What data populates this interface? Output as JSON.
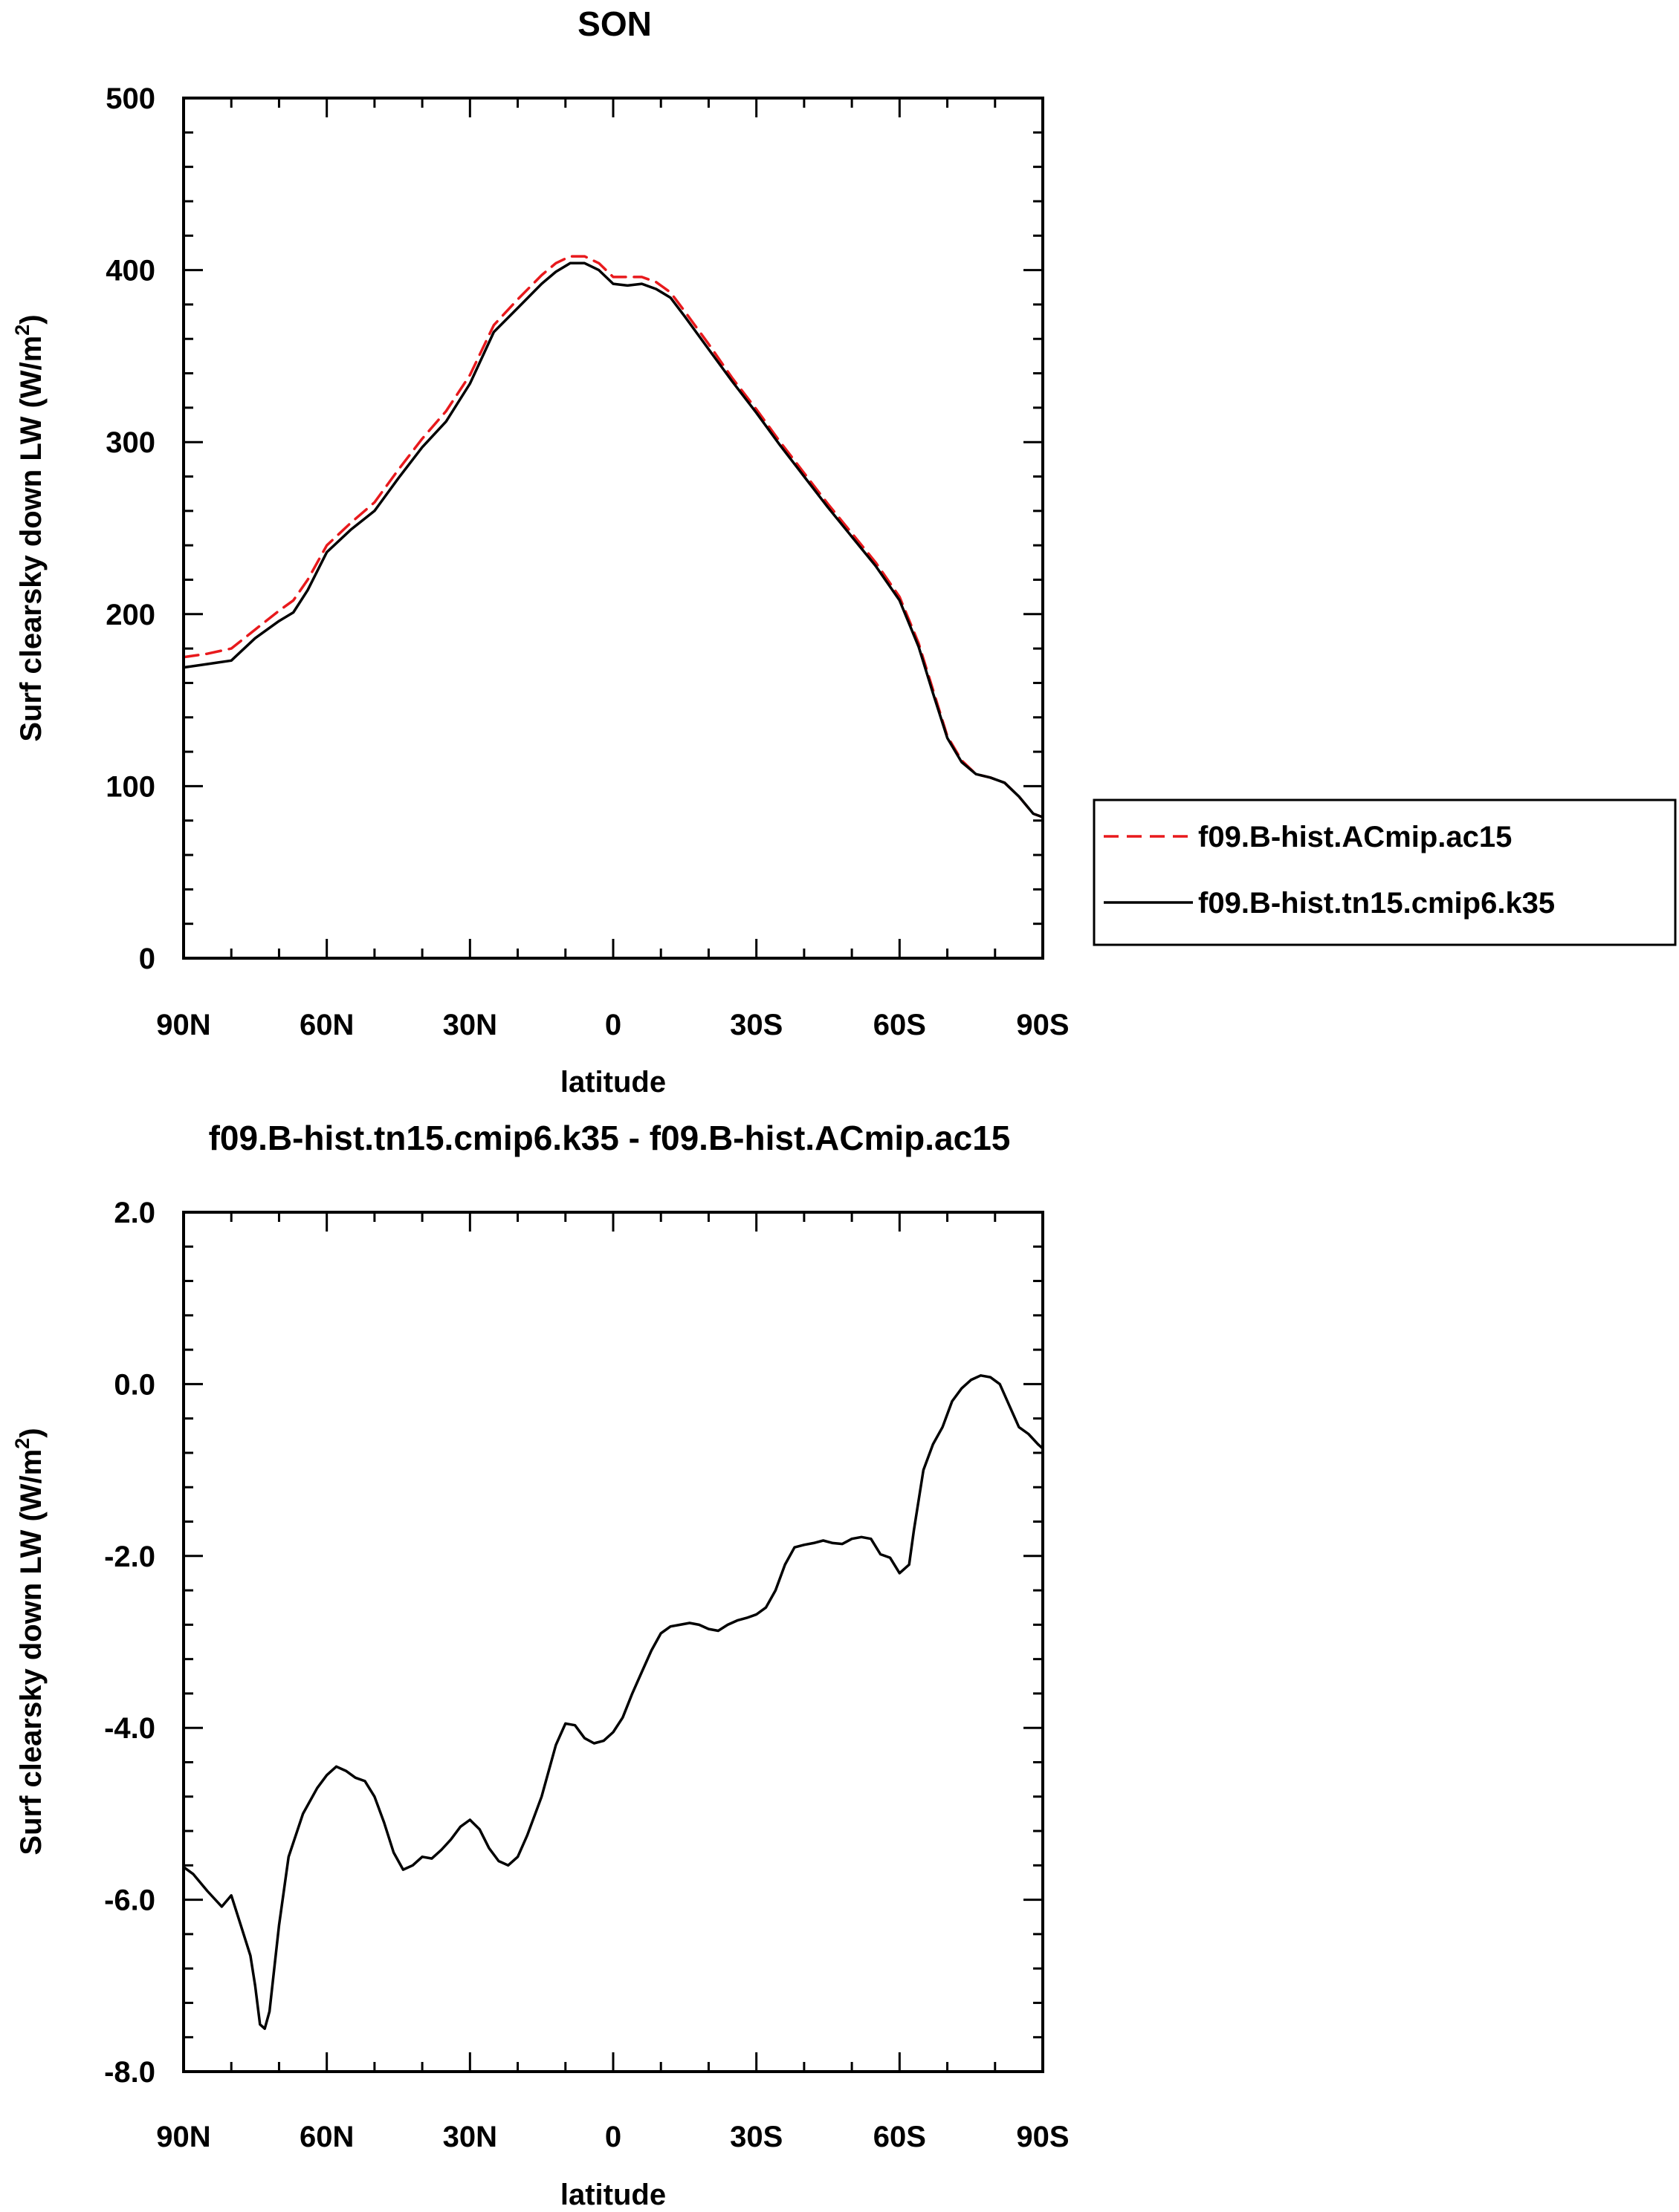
{
  "colors": {
    "ACmip": "#e8191c",
    "tn15": "#000000"
  },
  "chart_data": [
    {
      "type": "line",
      "title": "SON",
      "xlabel": "latitude",
      "ylabel_main": "Surf clearsky down LW (W/m",
      "ylabel_sup": "2",
      "ylabel_close": ")",
      "xlim": [
        90,
        -90
      ],
      "ylim": [
        0,
        500
      ],
      "xticks": [
        {
          "value": 90,
          "label": "90N"
        },
        {
          "value": 60,
          "label": "60N"
        },
        {
          "value": 30,
          "label": "30N"
        },
        {
          "value": 0,
          "label": "0"
        },
        {
          "value": -30,
          "label": "30S"
        },
        {
          "value": -60,
          "label": "60S"
        },
        {
          "value": -90,
          "label": "90S"
        }
      ],
      "yticks": [
        {
          "value": 0,
          "label": "0"
        },
        {
          "value": 100,
          "label": "100"
        },
        {
          "value": 200,
          "label": "200"
        },
        {
          "value": 300,
          "label": "300"
        },
        {
          "value": 400,
          "label": "400"
        },
        {
          "value": 500,
          "label": "500"
        }
      ],
      "legend_position": "right",
      "series": [
        {
          "name": "f09.B-hist.ACmip.ac15",
          "style": "dashed",
          "color": "#e8191c",
          "x": [
            90,
            85,
            80,
            75,
            70,
            67,
            64,
            60,
            55,
            50,
            45,
            40,
            35,
            30,
            25,
            20,
            15,
            12,
            9,
            6,
            3,
            0,
            -3,
            -6,
            -9,
            -12,
            -15,
            -20,
            -25,
            -30,
            -35,
            -40,
            -45,
            -50,
            -55,
            -60,
            -64,
            -67,
            -70,
            -73,
            -76,
            -79,
            -82,
            -85,
            -88,
            -90
          ],
          "y": [
            175,
            177,
            180,
            191,
            202,
            208,
            220,
            240,
            253,
            265,
            284,
            302,
            318,
            339,
            368,
            383,
            397,
            404,
            408,
            408,
            404,
            396,
            396,
            396,
            393,
            387,
            376,
            357,
            337,
            319,
            300,
            282,
            264,
            247,
            230,
            210,
            183,
            156,
            129,
            115,
            107,
            105,
            102,
            94,
            84,
            82
          ]
        },
        {
          "name": "f09.B-hist.tn15.cmip6.k35",
          "style": "solid",
          "color": "#000000",
          "x": [
            90,
            85,
            80,
            75,
            70,
            67,
            64,
            60,
            55,
            50,
            45,
            40,
            35,
            30,
            25,
            20,
            15,
            12,
            9,
            6,
            3,
            0,
            -3,
            -6,
            -9,
            -12,
            -15,
            -20,
            -25,
            -30,
            -35,
            -40,
            -45,
            -50,
            -55,
            -60,
            -64,
            -67,
            -70,
            -73,
            -76,
            -79,
            -82,
            -85,
            -88,
            -90
          ],
          "y": [
            169,
            171,
            173,
            186,
            196,
            201,
            214,
            236,
            249,
            260,
            279,
            297,
            312,
            334,
            364,
            378,
            392,
            399,
            404,
            404,
            400,
            392,
            391,
            392,
            389,
            384,
            373,
            354,
            335,
            317,
            298,
            280,
            262,
            245,
            228,
            208,
            181,
            154,
            128,
            114,
            107,
            105,
            102,
            94,
            84,
            82
          ]
        }
      ]
    },
    {
      "type": "line",
      "title": "f09.B-hist.tn15.cmip6.k35 - f09.B-hist.ACmip.ac15",
      "xlabel": "latitude",
      "ylabel_main": "Surf clearsky down LW (W/m",
      "ylabel_sup": "2",
      "ylabel_close": ")",
      "xlim": [
        90,
        -90
      ],
      "ylim": [
        -8.0,
        2.0
      ],
      "xticks": [
        {
          "value": 90,
          "label": "90N"
        },
        {
          "value": 60,
          "label": "60N"
        },
        {
          "value": 30,
          "label": "30N"
        },
        {
          "value": 0,
          "label": "0"
        },
        {
          "value": -30,
          "label": "30S"
        },
        {
          "value": -60,
          "label": "60S"
        },
        {
          "value": -90,
          "label": "90S"
        }
      ],
      "yticks": [
        {
          "value": -8,
          "label": "-8.0"
        },
        {
          "value": -6,
          "label": "-6.0"
        },
        {
          "value": -4,
          "label": "-4.0"
        },
        {
          "value": -2,
          "label": "-2.0"
        },
        {
          "value": 0,
          "label": "0.0"
        },
        {
          "value": 2,
          "label": "2.0"
        }
      ],
      "series": [
        {
          "style": "solid",
          "color": "#000000",
          "x": [
            90,
            88,
            85,
            82,
            80,
            78,
            76,
            75,
            74,
            73,
            72,
            70,
            68,
            65,
            62,
            60,
            58,
            56,
            54,
            52,
            50,
            48,
            46,
            44,
            42,
            40,
            38,
            36,
            34,
            32,
            30,
            28,
            26,
            24,
            22,
            20,
            18,
            15,
            12,
            10,
            8,
            6,
            4,
            2,
            0,
            -2,
            -4,
            -6,
            -8,
            -10,
            -12,
            -14,
            -16,
            -18,
            -20,
            -22,
            -24,
            -26,
            -28,
            -30,
            -32,
            -34,
            -36,
            -38,
            -40,
            -42,
            -44,
            -46,
            -48,
            -50,
            -52,
            -54,
            -56,
            -58,
            -60,
            -62,
            -63,
            -65,
            -67,
            -69,
            -71,
            -73,
            -75,
            -77,
            -79,
            -81,
            -83,
            -85,
            -87,
            -89,
            -90
          ],
          "y": [
            -5.62,
            -5.7,
            -5.9,
            -6.08,
            -5.95,
            -6.3,
            -6.65,
            -7.0,
            -7.45,
            -7.5,
            -7.3,
            -6.3,
            -5.5,
            -5.0,
            -4.7,
            -4.55,
            -4.45,
            -4.5,
            -4.58,
            -4.62,
            -4.8,
            -5.1,
            -5.45,
            -5.65,
            -5.6,
            -5.5,
            -5.52,
            -5.42,
            -5.3,
            -5.15,
            -5.07,
            -5.18,
            -5.4,
            -5.55,
            -5.6,
            -5.5,
            -5.25,
            -4.8,
            -4.2,
            -3.95,
            -3.97,
            -4.12,
            -4.18,
            -4.15,
            -4.05,
            -3.88,
            -3.6,
            -3.35,
            -3.1,
            -2.9,
            -2.82,
            -2.8,
            -2.78,
            -2.8,
            -2.85,
            -2.87,
            -2.8,
            -2.75,
            -2.72,
            -2.68,
            -2.6,
            -2.4,
            -2.1,
            -1.9,
            -1.87,
            -1.85,
            -1.82,
            -1.85,
            -1.86,
            -1.8,
            -1.78,
            -1.8,
            -1.98,
            -2.02,
            -2.2,
            -2.1,
            -1.7,
            -1.0,
            -0.7,
            -0.5,
            -0.2,
            -0.05,
            0.05,
            0.1,
            0.08,
            0.0,
            -0.25,
            -0.5,
            -0.58,
            -0.7,
            -0.75
          ]
        }
      ]
    }
  ]
}
